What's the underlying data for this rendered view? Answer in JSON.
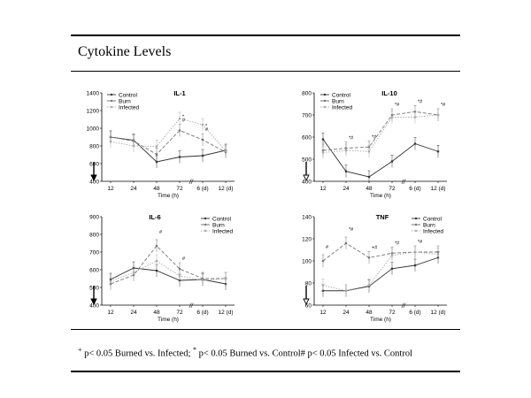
{
  "slide": {
    "title": "Cytokine Levels"
  },
  "footnote": {
    "sym1": "+",
    "text1": " p< 0.05 Burned vs. Infected; ",
    "sym2": "*",
    "text2": " p< 0.05 Burned vs. Control",
    "sym3": "#",
    "text3": "  p< 0.05 Infected vs. Control"
  },
  "colors": {
    "control": "#333333",
    "burn": "#777777",
    "infected": "#aaaaaa"
  },
  "chart_data": [
    {
      "type": "line",
      "title": "IL-1",
      "xlabel": "Time (h)",
      "ylabel": "",
      "categories": [
        "12",
        "24",
        "48",
        "72",
        "6 (d)",
        "12 (d)"
      ],
      "ylim": [
        400,
        1400
      ],
      "yticks": [
        400,
        600,
        800,
        1000,
        1200,
        1400
      ],
      "legend": [
        "Control",
        "Burn",
        "Infected"
      ],
      "legend_position": "top-left",
      "series": [
        {
          "name": "Control",
          "values": [
            900,
            865,
            620,
            675,
            690,
            750
          ]
        },
        {
          "name": "Burn",
          "values": [
            900,
            855,
            705,
            975,
            870,
            730
          ]
        },
        {
          "name": "Infected",
          "values": [
            850,
            800,
            795,
            1110,
            1040,
            745
          ]
        }
      ],
      "annotations": [
        "*",
        "#",
        "*",
        "#"
      ]
    },
    {
      "type": "line",
      "title": "IL-10",
      "xlabel": "Time (h)",
      "ylabel": "",
      "categories": [
        "12",
        "24",
        "48",
        "72",
        "6 (d)",
        "12 (d)"
      ],
      "ylim": [
        400,
        800
      ],
      "yticks": [
        400,
        500,
        600,
        700,
        800
      ],
      "legend": [
        "Control",
        "Burn",
        "Infected"
      ],
      "legend_position": "top-left",
      "series": [
        {
          "name": "Control",
          "values": [
            590,
            445,
            420,
            490,
            570,
            535
          ]
        },
        {
          "name": "Burn",
          "values": [
            540,
            550,
            555,
            700,
            715,
            700
          ]
        },
        {
          "name": "Infected",
          "values": [
            530,
            540,
            535,
            690,
            690,
            700
          ]
        }
      ],
      "annotations": [
        "*#",
        "*#",
        "*#",
        "*#",
        "*#"
      ]
    },
    {
      "type": "line",
      "title": "IL-6",
      "xlabel": "Time (h)",
      "ylabel": "",
      "categories": [
        "12",
        "24",
        "48",
        "72",
        "6 (d)",
        "12 (d)"
      ],
      "ylim": [
        400,
        900
      ],
      "yticks": [
        400,
        500,
        600,
        700,
        800,
        900
      ],
      "legend": [
        "Control",
        "Burn",
        "Infected"
      ],
      "legend_position": "top-right",
      "series": [
        {
          "name": "Control",
          "values": [
            545,
            610,
            595,
            540,
            545,
            520
          ]
        },
        {
          "name": "Burn",
          "values": [
            520,
            570,
            735,
            605,
            550,
            550
          ]
        },
        {
          "name": "Infected",
          "values": [
            535,
            585,
            650,
            565,
            540,
            550
          ]
        }
      ],
      "annotations": [
        "#",
        "#"
      ]
    },
    {
      "type": "line",
      "title": "TNF",
      "xlabel": "Time (h)",
      "ylabel": "",
      "categories": [
        "12",
        "24",
        "48",
        "72",
        "6 (d)",
        "12 (d)"
      ],
      "ylim": [
        60,
        140
      ],
      "yticks": [
        60,
        80,
        100,
        120,
        140
      ],
      "legend": [
        "Control",
        "Burn",
        "Infected"
      ],
      "legend_position": "top-right",
      "series": [
        {
          "name": "Control",
          "values": [
            73,
            73,
            77,
            93,
            96,
            103
          ]
        },
        {
          "name": "Burn",
          "values": [
            100,
            116,
            103,
            107,
            108,
            108
          ]
        },
        {
          "name": "Infected",
          "values": [
            78,
            73,
            78,
            105,
            108,
            106
          ]
        }
      ],
      "annotations": [
        "#",
        "*#",
        "+#",
        "*#",
        "*#"
      ]
    }
  ]
}
